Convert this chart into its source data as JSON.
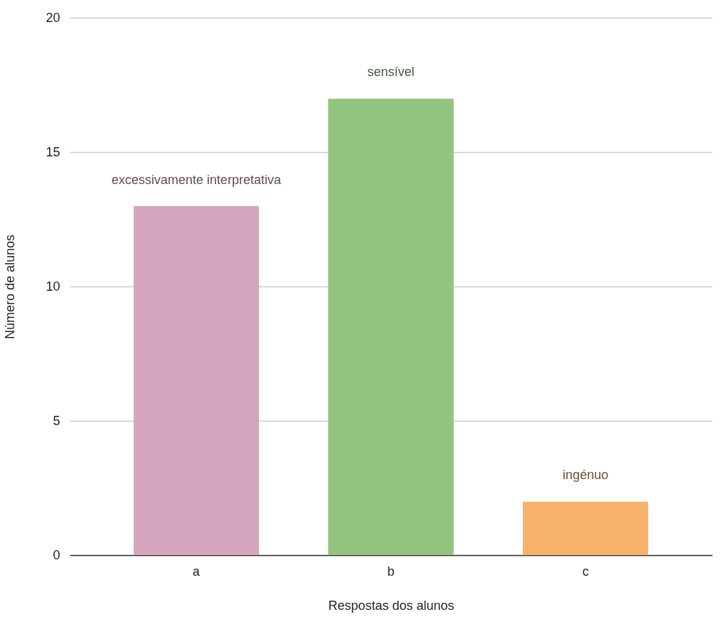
{
  "chart_data": {
    "type": "bar",
    "xlabel": "Respostas dos alunos",
    "ylabel": "Número de alunos",
    "categories": [
      "a",
      "b",
      "c"
    ],
    "values": [
      13,
      17,
      2
    ],
    "colors": [
      "#d5a6bd",
      "#93c47d",
      "#f6b26b"
    ],
    "ylim": [
      0,
      20
    ],
    "yticks": [
      0,
      5,
      10,
      15,
      20
    ],
    "grid": "y",
    "annotations": [
      {
        "text": "excessivamente interpretativa",
        "x": "a",
        "y": 13
      },
      {
        "text": "sensível",
        "x": "b",
        "y": 17
      },
      {
        "text": "ingénuo",
        "x": "c",
        "y": 2
      }
    ]
  }
}
